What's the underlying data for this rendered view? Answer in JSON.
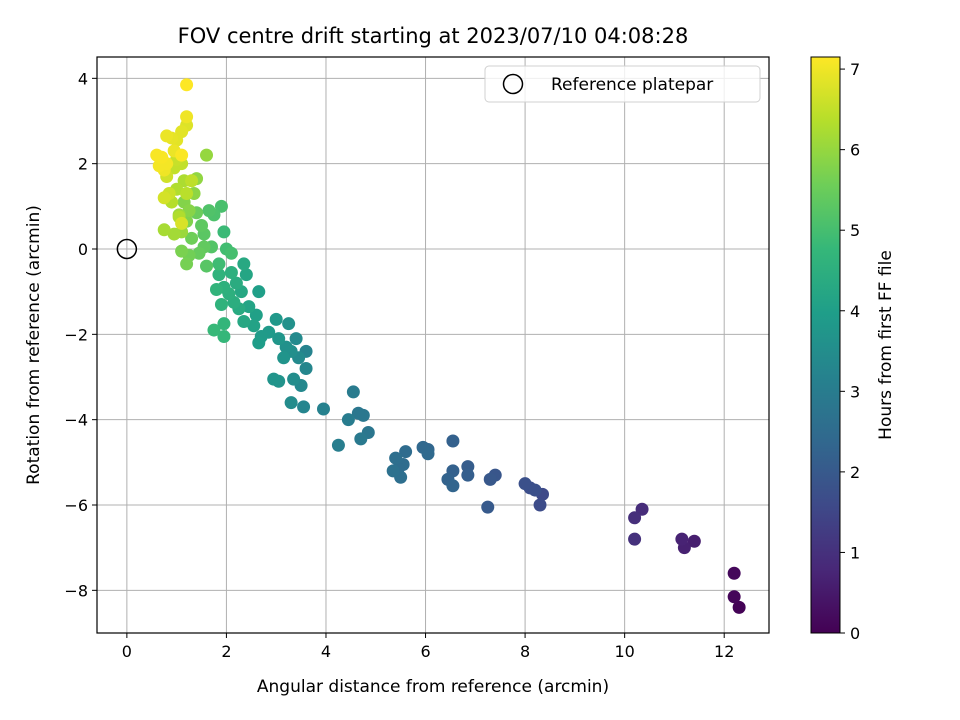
{
  "chart_data": {
    "type": "scatter",
    "title": "FOV centre drift starting at 2023/07/10 04:08:28",
    "xlabel": "Angular distance from reference (arcmin)",
    "ylabel": "Rotation from reference (arcmin)",
    "xlim": [
      -0.6,
      12.9
    ],
    "ylim": [
      -9.0,
      4.5
    ],
    "xticks": [
      0,
      2,
      4,
      6,
      8,
      10,
      12
    ],
    "yticks": [
      -8,
      -6,
      -4,
      -2,
      0,
      2,
      4
    ],
    "grid": true,
    "legend": {
      "position": "top-right",
      "entries": [
        {
          "label": "Reference platepar",
          "marker": "open-circle"
        }
      ]
    },
    "reference_point": {
      "x": 0,
      "y": 0
    },
    "colorbar": {
      "label": "Hours from first FF file",
      "range": [
        0,
        7.15
      ],
      "ticks": [
        0,
        1,
        2,
        3,
        4,
        5,
        6,
        7
      ],
      "colormap": "viridis"
    },
    "points": [
      [
        12.3,
        -8.4,
        0.05
      ],
      [
        12.2,
        -8.15,
        0.1
      ],
      [
        12.2,
        -7.6,
        0.15
      ],
      [
        11.4,
        -6.85,
        0.6
      ],
      [
        11.2,
        -7.0,
        0.65
      ],
      [
        11.15,
        -6.8,
        0.7
      ],
      [
        10.35,
        -6.1,
        0.9
      ],
      [
        10.2,
        -6.3,
        0.95
      ],
      [
        10.2,
        -6.8,
        1.0
      ],
      [
        8.35,
        -5.75,
        1.6
      ],
      [
        8.3,
        -6.0,
        1.65
      ],
      [
        8.1,
        -5.6,
        1.7
      ],
      [
        8.0,
        -5.5,
        1.75
      ],
      [
        8.2,
        -5.65,
        1.75
      ],
      [
        7.4,
        -5.3,
        1.9
      ],
      [
        7.3,
        -5.4,
        1.95
      ],
      [
        7.25,
        -6.05,
        2.0
      ],
      [
        6.85,
        -5.1,
        2.1
      ],
      [
        6.85,
        -5.3,
        2.15
      ],
      [
        6.55,
        -4.5,
        2.2
      ],
      [
        6.55,
        -5.2,
        2.2
      ],
      [
        6.45,
        -5.4,
        2.25
      ],
      [
        6.55,
        -5.55,
        2.3
      ],
      [
        6.05,
        -4.7,
        2.35
      ],
      [
        5.95,
        -4.65,
        2.4
      ],
      [
        6.05,
        -4.8,
        2.45
      ],
      [
        5.6,
        -4.75,
        2.5
      ],
      [
        5.55,
        -5.05,
        2.55
      ],
      [
        5.45,
        -5.15,
        2.55
      ],
      [
        5.4,
        -4.9,
        2.6
      ],
      [
        5.5,
        -5.35,
        2.6
      ],
      [
        5.35,
        -5.2,
        2.65
      ],
      [
        4.85,
        -4.3,
        2.8
      ],
      [
        4.75,
        -3.9,
        2.85
      ],
      [
        4.65,
        -3.85,
        2.85
      ],
      [
        4.7,
        -4.45,
        2.9
      ],
      [
        4.55,
        -3.35,
        2.95
      ],
      [
        4.45,
        -4.0,
        3.0
      ],
      [
        4.25,
        -4.6,
        3.05
      ],
      [
        3.95,
        -3.75,
        3.15
      ],
      [
        3.6,
        -2.4,
        3.2
      ],
      [
        3.55,
        -3.7,
        3.25
      ],
      [
        3.6,
        -2.8,
        3.3
      ],
      [
        3.5,
        -3.2,
        3.35
      ],
      [
        3.4,
        -2.1,
        3.4
      ],
      [
        3.45,
        -2.55,
        3.4
      ],
      [
        3.3,
        -3.6,
        3.45
      ],
      [
        3.35,
        -3.05,
        3.5
      ],
      [
        3.3,
        -2.4,
        3.55
      ],
      [
        3.25,
        -1.75,
        3.6
      ],
      [
        3.2,
        -2.3,
        3.6
      ],
      [
        3.05,
        -3.1,
        3.65
      ],
      [
        2.95,
        -3.05,
        3.7
      ],
      [
        3.15,
        -2.55,
        3.7
      ],
      [
        3.05,
        -2.1,
        3.75
      ],
      [
        3.0,
        -1.65,
        3.8
      ],
      [
        2.85,
        -1.95,
        3.85
      ],
      [
        2.7,
        -2.05,
        3.9
      ],
      [
        2.65,
        -2.2,
        3.95
      ],
      [
        2.65,
        -1.0,
        4.0
      ],
      [
        2.6,
        -1.55,
        4.05
      ],
      [
        2.55,
        -1.8,
        4.1
      ],
      [
        2.45,
        -1.35,
        4.15
      ],
      [
        2.4,
        -0.6,
        4.2
      ],
      [
        2.35,
        -1.7,
        4.25
      ],
      [
        2.3,
        -1.0,
        4.25
      ],
      [
        2.35,
        -0.35,
        4.3
      ],
      [
        2.25,
        -1.4,
        4.35
      ],
      [
        2.2,
        -0.8,
        4.4
      ],
      [
        2.15,
        -1.25,
        4.45
      ],
      [
        2.1,
        -0.55,
        4.5
      ],
      [
        2.05,
        -1.05,
        4.5
      ],
      [
        1.95,
        -0.9,
        4.55
      ],
      [
        1.9,
        -1.3,
        4.6
      ],
      [
        1.85,
        -0.6,
        4.6
      ],
      [
        1.8,
        -0.95,
        4.65
      ],
      [
        1.95,
        -1.75,
        4.7
      ],
      [
        1.95,
        -2.05,
        4.75
      ],
      [
        1.75,
        -1.9,
        4.8
      ],
      [
        1.95,
        0.4,
        4.85
      ],
      [
        1.85,
        -0.35,
        4.9
      ],
      [
        2.0,
        0.0,
        4.95
      ],
      [
        2.1,
        -0.1,
        5.0
      ],
      [
        1.9,
        1.0,
        5.05
      ],
      [
        1.75,
        0.8,
        5.1
      ],
      [
        1.65,
        0.9,
        5.15
      ],
      [
        1.7,
        0.05,
        5.2
      ],
      [
        1.6,
        -0.4,
        5.25
      ],
      [
        1.55,
        0.35,
        5.3
      ],
      [
        1.5,
        0.55,
        5.35
      ],
      [
        1.55,
        0.05,
        5.4
      ],
      [
        1.45,
        -0.1,
        5.45
      ],
      [
        1.4,
        0.85,
        5.5
      ],
      [
        1.3,
        0.25,
        5.55
      ],
      [
        1.25,
        -0.15,
        5.6
      ],
      [
        1.2,
        -0.35,
        5.65
      ],
      [
        1.1,
        -0.05,
        5.7
      ],
      [
        1.2,
        0.65,
        5.75
      ],
      [
        1.15,
        1.1,
        5.8
      ],
      [
        1.25,
        0.9,
        5.85
      ],
      [
        1.35,
        1.3,
        5.9
      ],
      [
        1.4,
        1.65,
        5.95
      ],
      [
        1.6,
        2.2,
        6.0
      ],
      [
        1.1,
        0.4,
        6.05
      ],
      [
        1.05,
        0.8,
        6.1
      ],
      [
        0.95,
        0.35,
        6.15
      ],
      [
        0.75,
        0.45,
        6.2
      ],
      [
        1.15,
        1.6,
        6.25
      ],
      [
        1.0,
        1.4,
        6.3
      ],
      [
        1.05,
        0.75,
        6.3
      ],
      [
        0.9,
        1.1,
        6.35
      ],
      [
        1.2,
        1.3,
        6.4
      ],
      [
        1.3,
        1.6,
        6.45
      ],
      [
        0.95,
        1.9,
        6.5
      ],
      [
        1.1,
        2.0,
        6.5
      ],
      [
        1.0,
        2.1,
        6.55
      ],
      [
        0.85,
        1.3,
        6.6
      ],
      [
        0.8,
        1.7,
        6.65
      ],
      [
        0.75,
        1.2,
        6.7
      ],
      [
        1.1,
        0.6,
        6.75
      ],
      [
        1.2,
        2.9,
        6.8
      ],
      [
        1.1,
        2.75,
        6.85
      ],
      [
        1.0,
        2.55,
        6.85
      ],
      [
        0.9,
        2.6,
        6.9
      ],
      [
        0.8,
        2.65,
        6.95
      ],
      [
        0.95,
        2.3,
        6.95
      ],
      [
        1.2,
        3.1,
        7.0
      ],
      [
        0.75,
        1.85,
        7.0
      ],
      [
        0.8,
        2.0,
        7.05
      ],
      [
        0.65,
        1.95,
        7.05
      ],
      [
        0.7,
        2.15,
        7.1
      ],
      [
        0.6,
        2.2,
        7.1
      ],
      [
        1.1,
        2.2,
        7.12
      ],
      [
        1.2,
        3.85,
        7.15
      ]
    ]
  }
}
